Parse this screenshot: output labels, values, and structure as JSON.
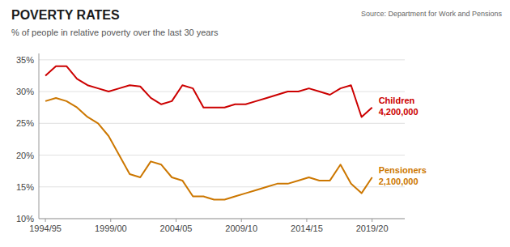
{
  "chart_data": {
    "type": "line",
    "title": "POVERTY RATES",
    "subtitle": "% of people in relative poverty over the last 30 years",
    "source": "Source: Department for Work and Pensions",
    "x": [
      0,
      0.8065,
      1.6129,
      2.4194,
      3.2258,
      4.0323,
      4.8387,
      5.6452,
      6.4516,
      7.2581,
      8.0645,
      8.871,
      9.6774,
      10.4839,
      11.2903,
      12.0968,
      12.9032,
      13.7097,
      14.5161,
      15.3226,
      16.129,
      16.9355,
      17.7419,
      18.5484,
      19.3548,
      20.1613,
      20.9677,
      21.7742,
      22.5806,
      23.3871,
      24.1935,
      25
    ],
    "xlim": [
      -0.5,
      27.5
    ],
    "xticks": [
      {
        "value": 0,
        "label": "1994/95"
      },
      {
        "value": 5,
        "label": "1999/00"
      },
      {
        "value": 10,
        "label": "2004/05"
      },
      {
        "value": 15,
        "label": "2009/10"
      },
      {
        "value": 20,
        "label": "2014/15"
      },
      {
        "value": 25,
        "label": "2019/20"
      }
    ],
    "ylim": [
      10,
      36
    ],
    "yticks": [
      {
        "value": 10,
        "label": "10%"
      },
      {
        "value": 15,
        "label": "15%"
      },
      {
        "value": 20,
        "label": "20%"
      },
      {
        "value": 25,
        "label": "25%"
      },
      {
        "value": 30,
        "label": "30%"
      },
      {
        "value": 35,
        "label": "35%"
      }
    ],
    "grid": true,
    "series": [
      {
        "name": "Children",
        "color": "#cc0000",
        "values": [
          32.5,
          34,
          34,
          32,
          31,
          30.5,
          30,
          30.5,
          31,
          30.8,
          29,
          28,
          28.5,
          31,
          30.5,
          27.5,
          27.5,
          27.5,
          28,
          28,
          28.5,
          29,
          29.5,
          30,
          30,
          30.5,
          30,
          29.5,
          30.5,
          31,
          26,
          27.5
        ]
      },
      {
        "name": "Pensioners",
        "color": "#cc7700",
        "values": [
          28.5,
          29,
          28.5,
          27.5,
          26,
          25,
          23,
          20,
          17,
          16.5,
          19,
          18.5,
          16.5,
          16,
          13.5,
          13.5,
          13,
          13,
          13.5,
          14,
          14.5,
          15,
          15.5,
          15.5,
          16,
          16.5,
          16,
          16,
          18.5,
          15.5,
          14,
          16.5
        ]
      }
    ],
    "annotations": [
      {
        "text": "4,200,000",
        "series": "Children"
      },
      {
        "text": "2,100,000",
        "series": "Pensioners"
      }
    ]
  }
}
